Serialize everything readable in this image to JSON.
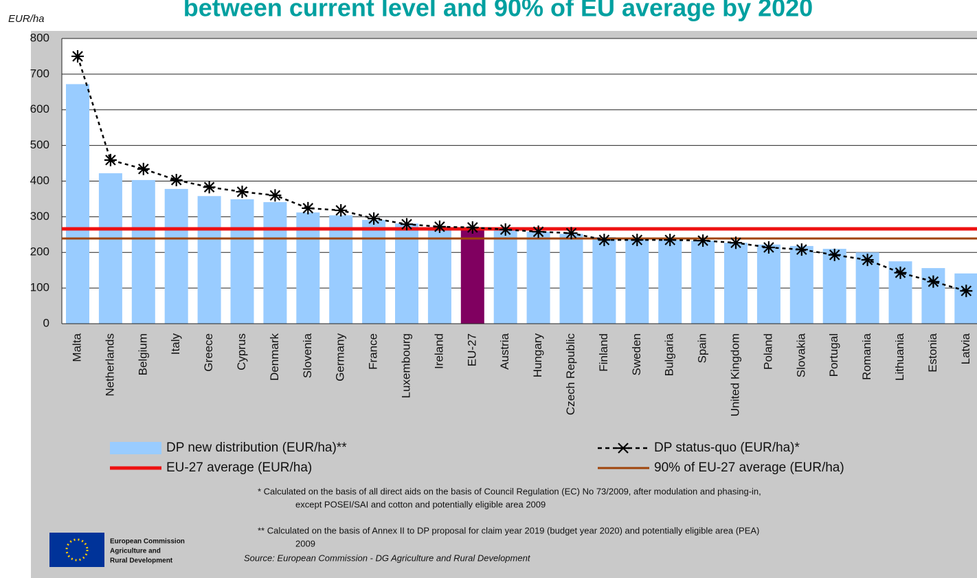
{
  "chart_data": {
    "type": "bar",
    "title": "between current level and 90% of EU average by 2020",
    "y_label": "EUR/ha",
    "categories": [
      "Malta",
      "Netherlands",
      "Belgium",
      "Italy",
      "Greece",
      "Cyprus",
      "Denmark",
      "Slovenia",
      "Germany",
      "France",
      "Luxembourg",
      "Ireland",
      "EU-27",
      "Austria",
      "Hungary",
      "Czech Republic",
      "Finland",
      "Sweden",
      "Bulgaria",
      "Spain",
      "United Kingdom",
      "Poland",
      "Slovakia",
      "Portugal",
      "Romania",
      "Lithuania",
      "Estonia",
      "Latvia"
    ],
    "series": [
      {
        "name": "DP new distribution (EUR/ha)**",
        "type": "bar",
        "color": "#99ccff",
        "highlight": {
          "category": "EU-27",
          "color": "#800060"
        },
        "values": [
          672,
          422,
          403,
          378,
          358,
          349,
          341,
          312,
          304,
          291,
          281,
          272,
          266,
          262,
          258,
          252,
          243,
          237,
          235,
          233,
          227,
          222,
          218,
          210,
          200,
          175,
          156,
          141
        ]
      },
      {
        "name": "DP status-quo (EUR/ha)*",
        "type": "line",
        "color": "#000000",
        "values": [
          750,
          459,
          434,
          403,
          383,
          370,
          360,
          324,
          318,
          295,
          279,
          272,
          270,
          264,
          258,
          254,
          235,
          235,
          235,
          233,
          227,
          214,
          208,
          193,
          179,
          143,
          118,
          92
        ]
      }
    ],
    "reference_lines": [
      {
        "name": "EU-27 average (EUR/ha)",
        "value": 266,
        "color": "#ee1111"
      },
      {
        "name": "90% of EU-27 average (EUR/ha)",
        "value": 239,
        "color": "#a0440a"
      }
    ],
    "ylim": [
      0,
      800
    ],
    "yticks": [
      0,
      100,
      200,
      300,
      400,
      500,
      600,
      700,
      800
    ],
    "grid": true,
    "notes": [
      [
        "* Calculated on the basis of all direct aids on the basis of Council Regulation (EC) No 73/2009, after modulation and phasing-in,",
        "except POSEI/SAI and cotton and potentially eligible area 2009"
      ],
      [
        "** Calculated on the basis of Annex II to DP proposal for claim year 2019 (budget year 2020) and potentially eligible area (PEA)",
        "2009"
      ]
    ],
    "source": "Source: European Commission - DG Agriculture and Rural Development",
    "logo_text": [
      "European Commission",
      "Agriculture and",
      "Rural Development"
    ]
  }
}
